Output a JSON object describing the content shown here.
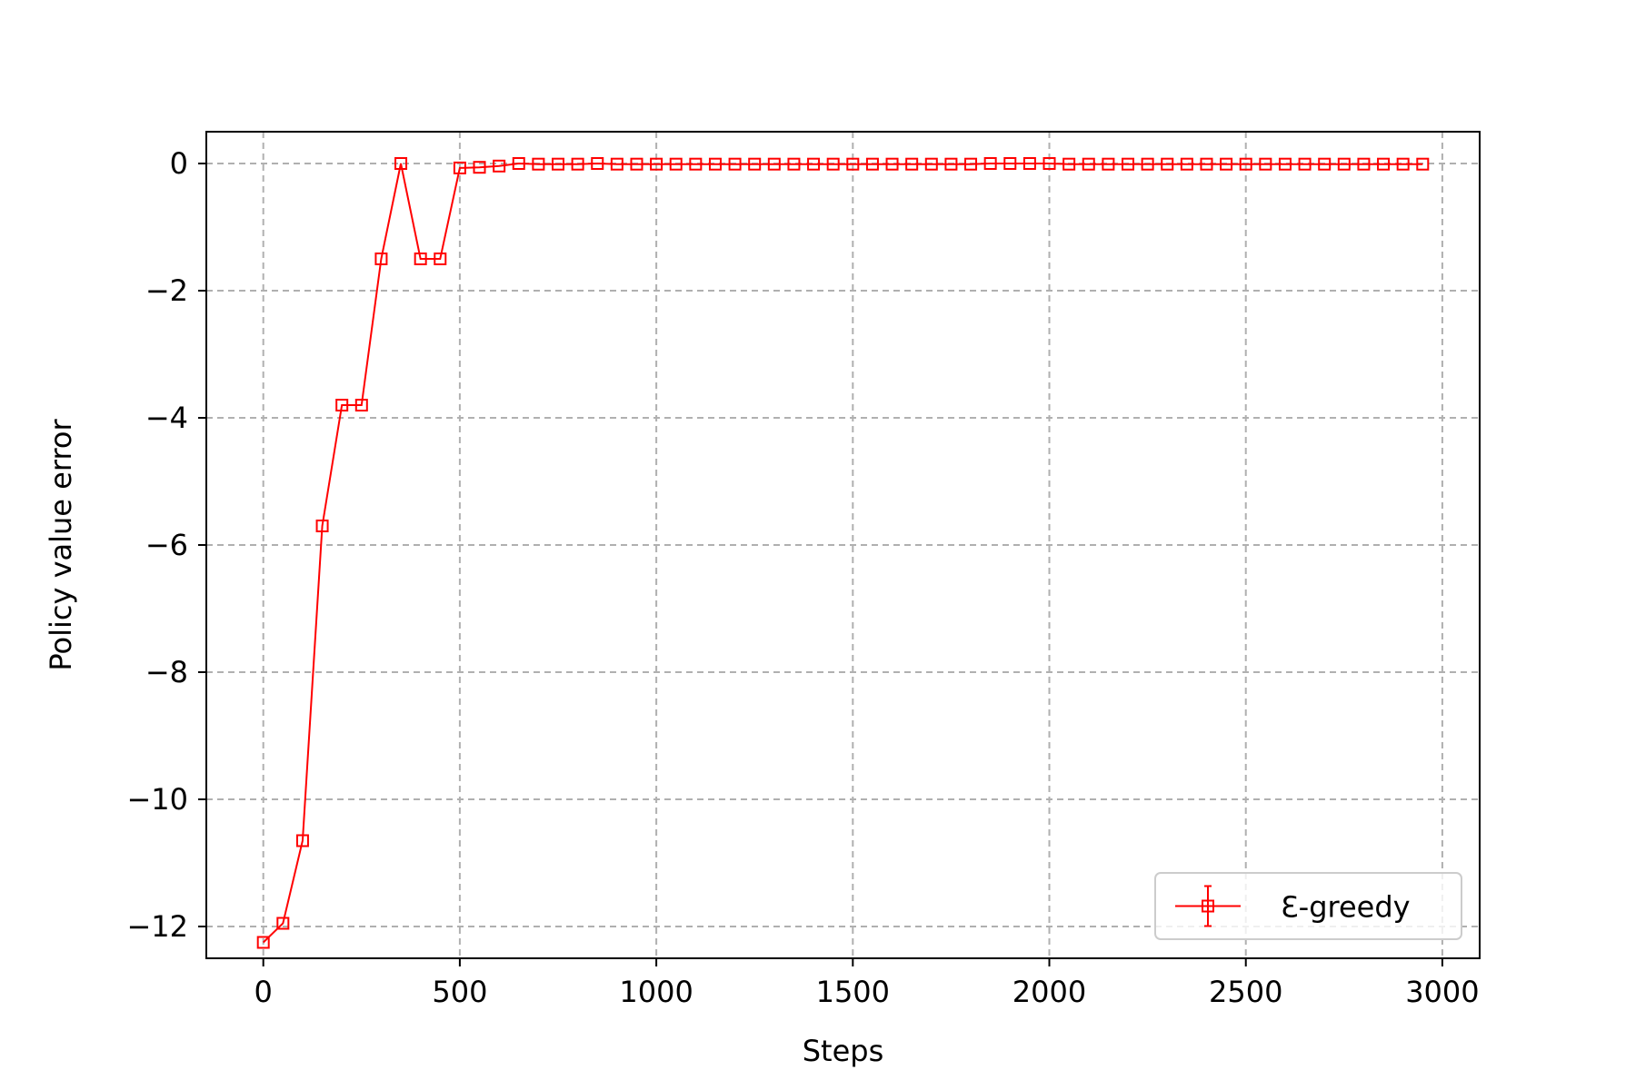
{
  "chart_data": {
    "type": "line",
    "title": "",
    "xlabel": "Steps",
    "ylabel": "Policy value error",
    "xlim": [
      -145,
      3095
    ],
    "ylim": [
      -12.5,
      0.5
    ],
    "xticks": [
      0,
      500,
      1000,
      1500,
      2000,
      2500,
      3000
    ],
    "xtick_labels": [
      "0",
      "500",
      "1000",
      "1500",
      "2000",
      "2500",
      "3000"
    ],
    "yticks": [
      0,
      -2,
      -4,
      -6,
      -8,
      -10,
      -12
    ],
    "ytick_labels": [
      "0",
      "−2",
      "−4",
      "−6",
      "−8",
      "−10",
      "−12"
    ],
    "grid": true,
    "grid_style": "dashed",
    "legend_position": "lower-right",
    "series": [
      {
        "name": "Ɛ-greedy",
        "color": "#ff0000",
        "marker": "square",
        "error_bars": true,
        "x": [
          0,
          50,
          100,
          150,
          200,
          250,
          300,
          350,
          400,
          450,
          500,
          550,
          600,
          650,
          700,
          750,
          800,
          850,
          900,
          950,
          1000,
          1050,
          1100,
          1150,
          1200,
          1250,
          1300,
          1350,
          1400,
          1450,
          1500,
          1550,
          1600,
          1650,
          1700,
          1750,
          1800,
          1850,
          1900,
          1950,
          2000,
          2050,
          2100,
          2150,
          2200,
          2250,
          2300,
          2350,
          2400,
          2450,
          2500,
          2550,
          2600,
          2650,
          2700,
          2750,
          2800,
          2850,
          2900,
          2950
        ],
        "y": [
          -12.25,
          -11.95,
          -10.65,
          -5.7,
          -3.8,
          -3.8,
          -1.5,
          0.0,
          -1.5,
          -1.5,
          -0.07,
          -0.06,
          -0.04,
          0.0,
          -0.01,
          -0.01,
          -0.01,
          0.0,
          -0.01,
          -0.01,
          -0.01,
          -0.01,
          -0.01,
          -0.01,
          -0.01,
          -0.01,
          -0.01,
          -0.01,
          -0.01,
          -0.01,
          -0.01,
          -0.01,
          -0.01,
          -0.01,
          -0.01,
          -0.01,
          -0.01,
          0.0,
          0.0,
          0.0,
          0.0,
          -0.01,
          -0.01,
          -0.01,
          -0.01,
          -0.01,
          -0.01,
          -0.01,
          -0.01,
          -0.01,
          -0.01,
          -0.01,
          -0.01,
          -0.01,
          -0.01,
          -0.01,
          -0.01,
          -0.01,
          -0.01,
          -0.01
        ]
      }
    ]
  }
}
